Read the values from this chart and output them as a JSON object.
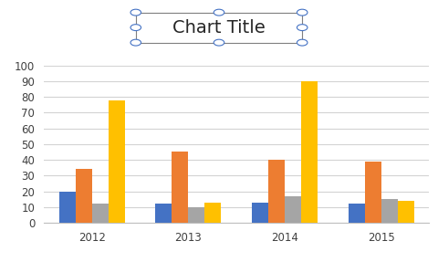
{
  "title": "Chart Title",
  "categories": [
    2012,
    2013,
    2014,
    2015
  ],
  "series": {
    "Desktop Computers": [
      20,
      12,
      13,
      12
    ],
    "Laptops": [
      34,
      45,
      40,
      39
    ],
    "Monitors": [
      12,
      10,
      17,
      15
    ],
    "Printers": [
      78,
      13,
      90,
      14
    ]
  },
  "colors": {
    "Desktop Computers": "#4472C4",
    "Laptops": "#ED7D31",
    "Monitors": "#A5A5A5",
    "Printers": "#FFC000"
  },
  "ylim": [
    0,
    100
  ],
  "yticks": [
    0,
    10,
    20,
    30,
    40,
    50,
    60,
    70,
    80,
    90,
    100
  ],
  "background_color": "#FFFFFF",
  "grid_color": "#D3D3D3",
  "bar_width": 0.17,
  "title_fontsize": 14,
  "legend_fontsize": 8,
  "tick_fontsize": 8.5,
  "outer_border_color": "#BFBFBF",
  "title_box_color": "#7F7F7F",
  "handle_color": "#4472C4"
}
